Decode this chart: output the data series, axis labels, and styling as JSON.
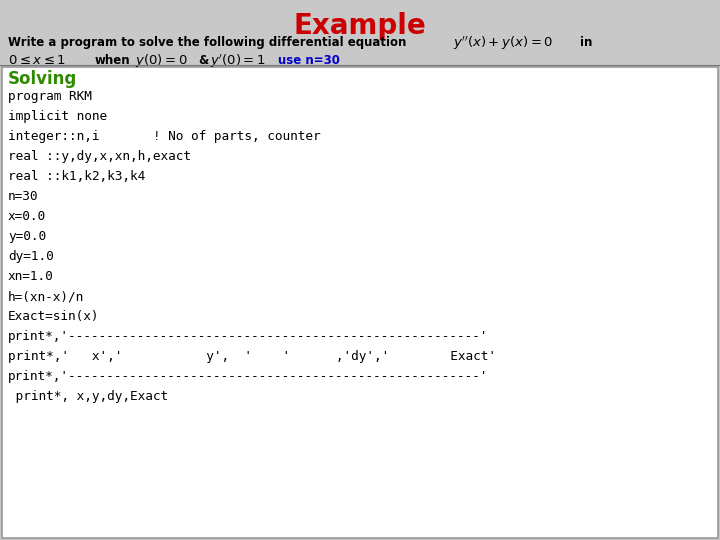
{
  "title": "Example",
  "title_color": "#CC0000",
  "title_fontsize": 20,
  "bg_color": "#D0D0D0",
  "header_line1": "Write a program to solve the following differential equation",
  "header_eq": "$y''(x)+y(x)=0$",
  "header_in": "in",
  "solving_label": "Solving",
  "solving_color": "#2E8B00",
  "code_lines": [
    "program RKM",
    "implicit none",
    "integer::n,i       ! No of parts, counter",
    "real ::y,dy,x,xn,h,exact",
    "real ::k1,k2,k3,k4",
    "n=30",
    "x=0.0",
    "y=0.0",
    "dy=1.0",
    "xn=1.0",
    "h=(xn-x)/n",
    "Exact=sin(x)",
    "print*,'------------------------------------------------------'",
    "print*,'   x','           y',  '    '      ,'dy','        Exact'",
    "print*,'------------------------------------------------------'",
    " print*, x,y,dy,Exact"
  ],
  "box_bg": "#FFFFFF",
  "box_border": "#999999",
  "outer_bg": "#C8C8C8"
}
